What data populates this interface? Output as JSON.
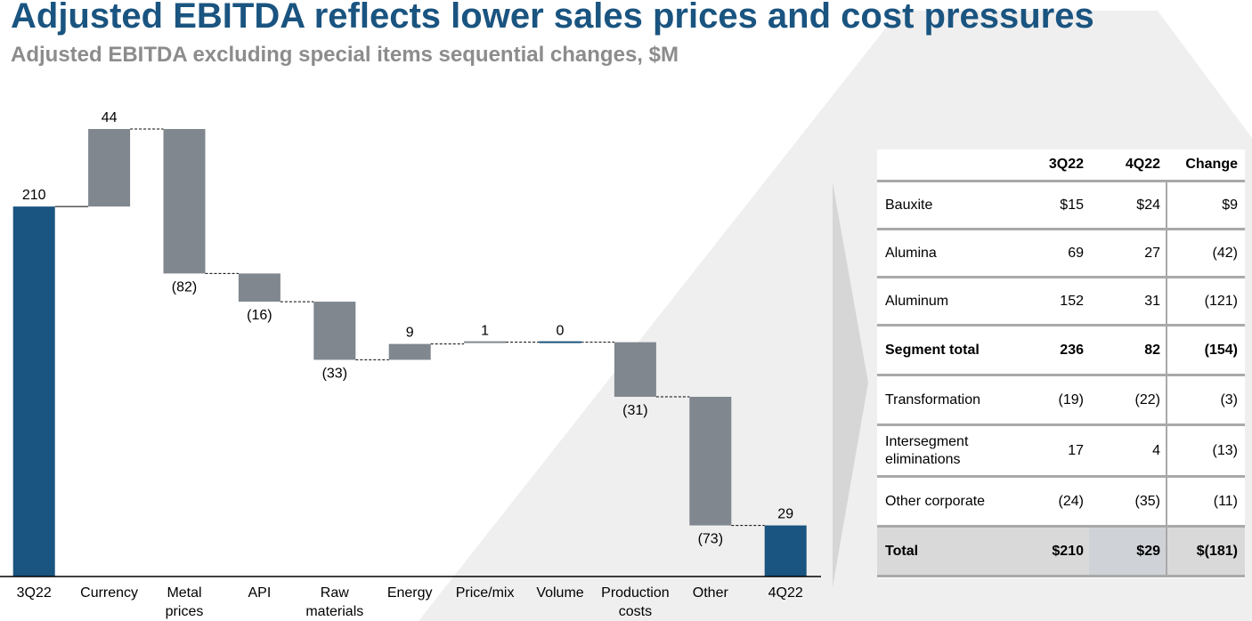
{
  "title": "Adjusted EBITDA reflects lower sales prices and cost pressures",
  "subtitle": "Adjusted EBITDA excluding special items sequential changes, $M",
  "chart_data": {
    "type": "waterfall",
    "categories": [
      "3Q22",
      "Currency",
      "Metal prices",
      "API",
      "Raw materials",
      "Energy",
      "Price/mix",
      "Volume",
      "Production costs",
      "Other",
      "4Q22"
    ],
    "values": [
      210,
      44,
      -82,
      -16,
      -33,
      9,
      1,
      0,
      -31,
      -73,
      29
    ],
    "value_labels": [
      "210",
      "44",
      "(82)",
      "(16)",
      "(33)",
      "9",
      "1",
      "0",
      "(31)",
      "(73)",
      "29"
    ],
    "measure": [
      "total",
      "relative",
      "relative",
      "relative",
      "relative",
      "relative",
      "relative",
      "relative",
      "relative",
      "relative",
      "total"
    ],
    "colors": [
      "#1a5480",
      "#80878e",
      "#80878e",
      "#80878e",
      "#80878e",
      "#80878e",
      "#80878e",
      "#1a5480",
      "#80878e",
      "#80878e",
      "#1a5480"
    ]
  },
  "table": {
    "columns": [
      "3Q22",
      "4Q22",
      "Change"
    ],
    "rows": [
      [
        "Bauxite",
        "$15",
        "$24",
        "$9"
      ],
      [
        "Alumina",
        "69",
        "27",
        "(42)"
      ],
      [
        "Aluminum",
        "152",
        "31",
        "(121)"
      ],
      [
        "Segment total",
        "236",
        "82",
        "(154)"
      ],
      [
        "Transformation",
        "(19)",
        "(22)",
        "(3)"
      ],
      [
        "Intersegment eliminations",
        "17",
        "4",
        "(13)"
      ],
      [
        "Other corporate",
        "(24)",
        "(35)",
        "(11)"
      ],
      [
        "Total",
        "$210",
        "$29",
        "$(181)"
      ]
    ],
    "bold_rows": [
      3,
      7
    ]
  }
}
